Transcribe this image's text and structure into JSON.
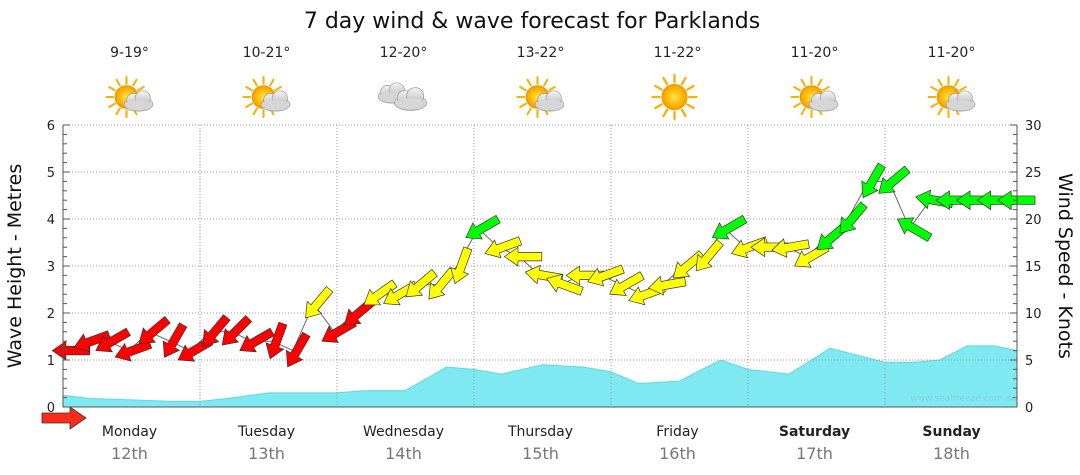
{
  "title": "7 day wind & wave forecast for Parklands",
  "credit": "www.seabreeze.com.au",
  "chart_data": {
    "type": "area",
    "title": "7 day wind & wave forecast for Parklands",
    "ylabel_left": "Wave Height - Metres",
    "ylabel_right": "Wind Speed - Knots",
    "ylim_left": [
      0,
      6
    ],
    "ylim_right": [
      0,
      30
    ],
    "yticks_left": [
      "0",
      "1",
      "2",
      "3",
      "4",
      "5",
      "6"
    ],
    "yticks_right": [
      "0",
      "5",
      "10",
      "15",
      "20",
      "25",
      "30"
    ],
    "grid": true,
    "days": [
      {
        "name": "Monday",
        "date": "12th",
        "temp": "9-19°",
        "icon": "partly-cloudy-icon",
        "bold": false
      },
      {
        "name": "Tuesday",
        "date": "13th",
        "temp": "10-21°",
        "icon": "partly-cloudy-icon",
        "bold": false
      },
      {
        "name": "Wednesday",
        "date": "14th",
        "temp": "12-20°",
        "icon": "cloudy-icon",
        "bold": false
      },
      {
        "name": "Thursday",
        "date": "15th",
        "temp": "13-22°",
        "icon": "partly-cloudy-icon",
        "bold": false
      },
      {
        "name": "Friday",
        "date": "16th",
        "temp": "11-22°",
        "icon": "sunny-icon",
        "bold": false
      },
      {
        "name": "Saturday",
        "date": "17th",
        "temp": "11-20°",
        "icon": "partly-cloudy-icon",
        "bold": true
      },
      {
        "name": "Sunday",
        "date": "18th",
        "temp": "11-20°",
        "icon": "partly-cloudy-icon",
        "bold": true
      }
    ],
    "wave_series": {
      "name": "Wave Height",
      "unit": "m",
      "color": "#7fe9f2",
      "x_day": [
        0,
        0.2,
        0.5,
        0.8,
        1.0,
        1.2,
        1.5,
        1.8,
        2.0,
        2.2,
        2.5,
        2.8,
        3.0,
        3.2,
        3.5,
        3.8,
        4.0,
        4.2,
        4.5,
        4.8,
        5.0,
        5.3,
        5.6,
        6.0,
        6.2,
        6.4,
        6.6,
        6.8,
        7.0
      ],
      "values": [
        0.25,
        0.18,
        0.15,
        0.12,
        0.12,
        0.18,
        0.3,
        0.3,
        0.3,
        0.35,
        0.35,
        0.85,
        0.8,
        0.7,
        0.9,
        0.85,
        0.75,
        0.5,
        0.55,
        1.0,
        0.8,
        0.7,
        1.25,
        0.95,
        0.95,
        1.0,
        1.3,
        1.3,
        1.2
      ]
    },
    "wind_series": {
      "name": "Wind Speed",
      "unit": "knots",
      "color_scale": [
        {
          "max": 10,
          "color": "#ff0000"
        },
        {
          "max": 17,
          "color": "#ffff00"
        },
        {
          "max": 30,
          "color": "#00ff00"
        }
      ],
      "x_day": [
        0,
        0.15,
        0.3,
        0.45,
        0.6,
        0.75,
        0.9,
        1.05,
        1.2,
        1.35,
        1.5,
        1.65,
        1.8,
        1.95,
        2.1,
        2.25,
        2.4,
        2.55,
        2.7,
        2.85,
        3.0,
        3.15,
        3.3,
        3.45,
        3.6,
        3.75,
        3.9,
        4.05,
        4.2,
        4.35,
        4.5,
        4.65,
        4.8,
        4.95,
        5.1,
        5.25,
        5.4,
        5.55,
        5.7,
        5.85,
        6.0,
        6.15,
        6.3,
        6.45,
        6.6,
        6.75,
        6.9
      ],
      "values": [
        6,
        7,
        7,
        6,
        8,
        7,
        6,
        8,
        8,
        7,
        7,
        6,
        11,
        8,
        10,
        12,
        12,
        13,
        13,
        15,
        19,
        17,
        16,
        14,
        13,
        14,
        14,
        13,
        12,
        13,
        15,
        16,
        19,
        17,
        17,
        17,
        16,
        18,
        20,
        24,
        24,
        19,
        22,
        22,
        22,
        22,
        22
      ],
      "direction_deg": [
        270,
        250,
        240,
        250,
        230,
        210,
        240,
        220,
        225,
        240,
        200,
        210,
        220,
        240,
        230,
        235,
        240,
        230,
        220,
        200,
        240,
        250,
        270,
        280,
        290,
        270,
        250,
        240,
        250,
        260,
        230,
        220,
        240,
        250,
        270,
        260,
        240,
        230,
        220,
        210,
        230,
        300,
        280,
        270,
        270,
        270,
        270
      ]
    }
  }
}
